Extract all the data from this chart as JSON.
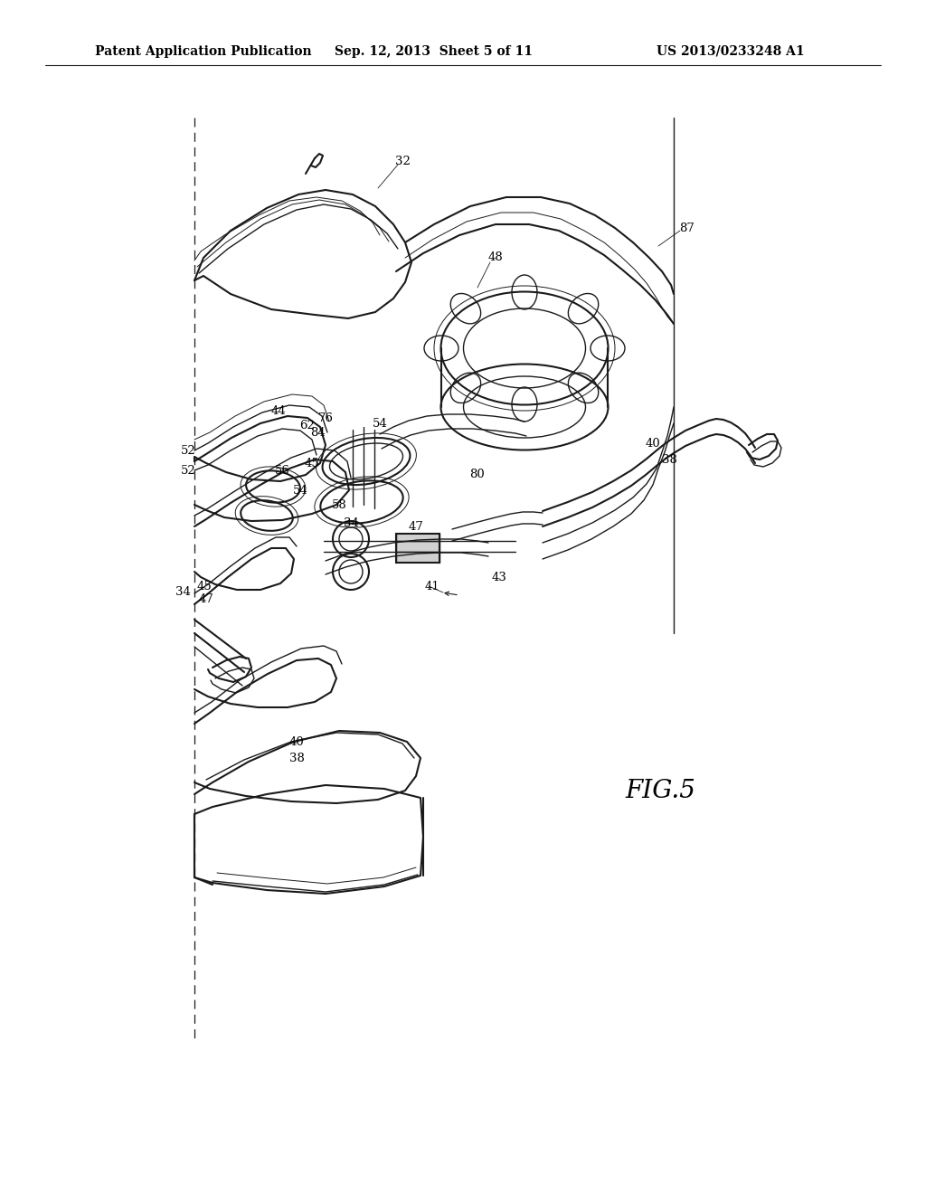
{
  "background_color": "#ffffff",
  "header_left": "Patent Application Publication",
  "header_center": "Sep. 12, 2013  Sheet 5 of 11",
  "header_right": "US 2013/0233248 A1",
  "figure_label": "FIG.5",
  "fig_width": 10.24,
  "fig_height": 13.2,
  "dpi": 100,
  "line_color": "#1a1a1a",
  "text_color": "#000000"
}
